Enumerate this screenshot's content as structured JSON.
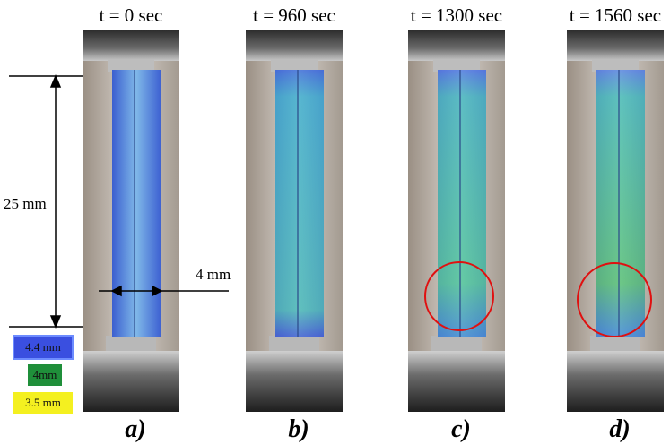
{
  "panels": [
    {
      "time_label": "t = 0 sec",
      "label": "a)"
    },
    {
      "time_label": "t = 960 sec",
      "label": "b)"
    },
    {
      "time_label": "t = 1300 sec",
      "label": "c)"
    },
    {
      "time_label": "t = 1560 sec",
      "label": "d)"
    }
  ],
  "dimensions": {
    "length": "25 mm",
    "width": "4 mm"
  },
  "legend": [
    {
      "label": "4.4 mm"
    },
    {
      "label": "4mm"
    },
    {
      "label": "3.5 mm"
    }
  ]
}
